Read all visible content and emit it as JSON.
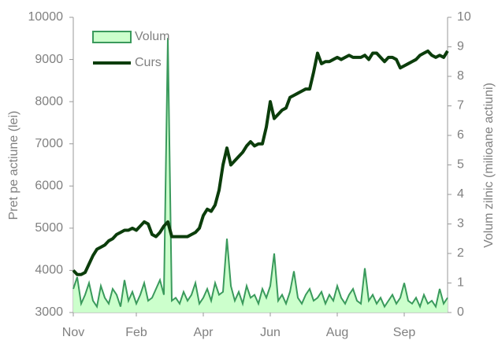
{
  "chart_data": {
    "type": "line",
    "y_label": "Pret pe actiune (lei)",
    "y2_label": "Volum zilnic (milioane actiuni)",
    "categories": [
      "Nov",
      null,
      null,
      null,
      null,
      null,
      null,
      null,
      null,
      null,
      null,
      null,
      null,
      null,
      null,
      null,
      "Feb",
      null,
      null,
      null,
      null,
      null,
      null,
      null,
      null,
      null,
      null,
      null,
      null,
      null,
      null,
      null,
      null,
      "Apr",
      null,
      null,
      null,
      null,
      null,
      null,
      null,
      null,
      null,
      null,
      null,
      null,
      null,
      null,
      null,
      null,
      "Jun",
      null,
      null,
      null,
      null,
      null,
      null,
      null,
      null,
      null,
      null,
      null,
      null,
      null,
      null,
      null,
      null,
      "Aug",
      null,
      null,
      null,
      null,
      null,
      null,
      null,
      null,
      null,
      null,
      null,
      null,
      null,
      null,
      null,
      null,
      "Sep",
      null,
      null,
      null,
      null,
      null,
      null,
      null,
      null,
      null,
      null,
      null
    ],
    "series": [
      {
        "name": "Volum",
        "kind": "area",
        "axis": "y2",
        "color": "#3a9a5c",
        "fill": "#ccffcc",
        "values": [
          0.8,
          1.2,
          0.3,
          0.6,
          1.0,
          0.4,
          0.2,
          0.9,
          0.5,
          0.3,
          0.8,
          0.6,
          0.2,
          1.1,
          0.4,
          0.7,
          0.3,
          0.6,
          1.0,
          0.4,
          0.5,
          0.8,
          1.1,
          0.6,
          9.3,
          0.4,
          0.5,
          0.3,
          0.7,
          0.4,
          0.6,
          1.0,
          0.3,
          0.5,
          0.8,
          0.4,
          1.0,
          0.6,
          0.7,
          2.5,
          0.9,
          0.4,
          0.7,
          0.3,
          0.9,
          0.5,
          0.6,
          0.3,
          0.8,
          0.5,
          0.9,
          2.0,
          0.4,
          0.6,
          0.3,
          0.7,
          1.4,
          0.5,
          0.3,
          0.6,
          0.8,
          0.4,
          0.5,
          0.7,
          0.3,
          0.6,
          0.4,
          0.9,
          0.5,
          0.3,
          0.6,
          0.8,
          0.4,
          0.3,
          1.5,
          0.4,
          0.6,
          0.3,
          0.5,
          0.2,
          0.4,
          0.6,
          0.3,
          0.5,
          1.0,
          0.4,
          0.3,
          0.5,
          0.2,
          0.6,
          0.3,
          0.4,
          0.2,
          0.8,
          0.3,
          0.5
        ]
      },
      {
        "name": "Curs",
        "kind": "line",
        "axis": "y",
        "color": "#0b3d0b",
        "values": [
          4000,
          3900,
          3900,
          3950,
          4150,
          4350,
          4500,
          4550,
          4600,
          4700,
          4750,
          4850,
          4900,
          4950,
          4950,
          5000,
          4950,
          5050,
          5150,
          5100,
          4850,
          4800,
          4900,
          5050,
          5150,
          4800,
          4800,
          4800,
          4800,
          4800,
          4850,
          4900,
          5000,
          5300,
          5450,
          5400,
          5550,
          5900,
          6500,
          6900,
          6500,
          6600,
          6700,
          6800,
          6950,
          7050,
          6950,
          7000,
          7000,
          7400,
          8000,
          7600,
          7700,
          7800,
          7850,
          8100,
          8150,
          8200,
          8250,
          8300,
          8300,
          8700,
          9150,
          8900,
          8950,
          8950,
          9000,
          9050,
          9000,
          9050,
          9100,
          9050,
          9050,
          9050,
          9100,
          9000,
          9150,
          9150,
          9050,
          8950,
          9050,
          9050,
          9000,
          8800,
          8850,
          8900,
          8950,
          9000,
          9100,
          9150,
          9200,
          9100,
          9050,
          9100,
          9050,
          9200
        ]
      }
    ],
    "ylim": [
      3000,
      10000
    ],
    "yticks": [
      3000,
      4000,
      5000,
      6000,
      7000,
      8000,
      9000,
      10000
    ],
    "y2lim": [
      0,
      10
    ],
    "y2ticks": [
      0,
      1,
      2,
      3,
      4,
      5,
      6,
      7,
      8,
      9,
      10
    ],
    "legend": "upper left",
    "grid": false
  }
}
